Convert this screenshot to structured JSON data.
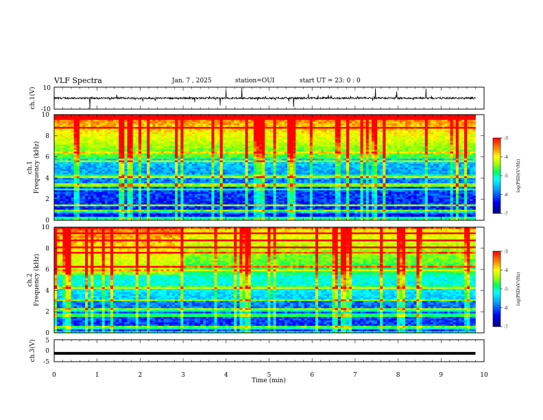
{
  "header": {
    "title": "VLF Spectra",
    "date": "Jan. 7 , 2025",
    "station": "station=OUI",
    "start": "start UT = 23: 0 : 0"
  },
  "chart_data": [
    {
      "type": "line",
      "panel": "ch1-waveform",
      "ylabel": "ch.1(V)",
      "ylim": [
        -10,
        10
      ],
      "yticks": [
        "10",
        "-10"
      ],
      "xlim": [
        0,
        10
      ],
      "baseline": 0,
      "description_values": "noisy waveform centered near 0 V with spikes reaching about -10 to 10 V"
    },
    {
      "type": "heatmap",
      "panel": "ch1-spectrogram",
      "ylabel": "ch.1\nFrequency (kHz)",
      "ylabel_lines": [
        "ch.1",
        "Frequency (kHz)"
      ],
      "ylim": [
        0,
        10
      ],
      "yticks": [
        "0",
        "2",
        "4",
        "6",
        "8",
        "10"
      ],
      "xlim": [
        0,
        9.8
      ],
      "colorbar": {
        "label": "log(PSD)(V²/Hz)",
        "range": [
          -7,
          -3
        ],
        "ticks": [
          "-3",
          "-4",
          "-5",
          "-6",
          "-7"
        ]
      }
    },
    {
      "type": "heatmap",
      "panel": "ch2-spectrogram",
      "ylabel": "ch.2\nFrequency (kHz)",
      "ylabel_lines": [
        "ch.2",
        "Frequency (kHz)"
      ],
      "ylim": [
        0,
        10
      ],
      "yticks": [
        "0",
        "2",
        "4",
        "6",
        "8",
        "10"
      ],
      "xlim": [
        0,
        9.8
      ],
      "colorbar": {
        "label": "log(PSD)(V²/Hz)",
        "range": [
          -7,
          -3
        ],
        "ticks": [
          "-3",
          "-4",
          "-5",
          "-6",
          "-7"
        ]
      }
    },
    {
      "type": "line",
      "panel": "ch3-waveform",
      "ylabel": "ch.3(V)",
      "ylim": [
        -5,
        5
      ],
      "yticks": [
        "5",
        "0",
        "-5"
      ],
      "xlim": [
        0,
        10
      ],
      "values_constant": -1.2
    }
  ],
  "xaxis": {
    "label": "Time (min)",
    "ticks": [
      "0",
      "1",
      "2",
      "3",
      "4",
      "5",
      "6",
      "7",
      "8",
      "9",
      "10"
    ]
  },
  "colors": {
    "colormap": [
      "#00007a",
      "#0000ff",
      "#00a0ff",
      "#00ffff",
      "#00ff60",
      "#a0ff00",
      "#ffff00",
      "#ff8000",
      "#ff0000"
    ]
  }
}
